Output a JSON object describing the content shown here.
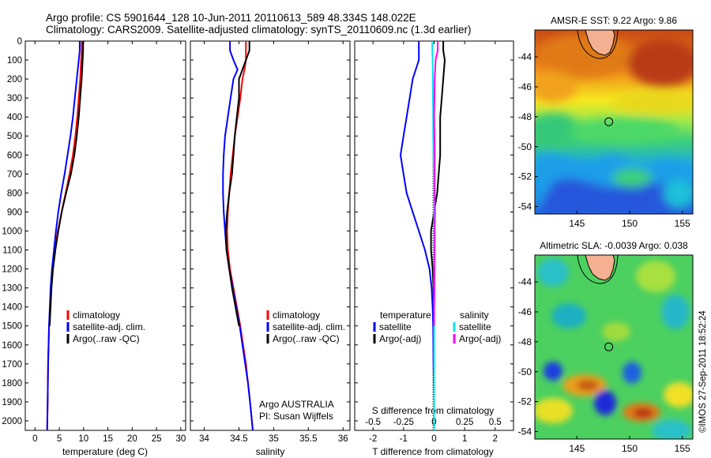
{
  "header": {
    "line1": "Argo profile: CS 5901644_128 10-Jun-2011 20110613_589 48.334S 148.022E",
    "line2": "Climatology: CARS2009. Satellite-adjusted climatology: synTS_20110609.nc (1.3d earlier)"
  },
  "colors": {
    "climatology": "#ff0000",
    "satellite": "#0000ff",
    "argo": "#000000",
    "satellite_salinity": "#00e5ee",
    "argo_salinity": "#ff00ff"
  },
  "depth_ticks": [
    "0",
    "100",
    "200",
    "300",
    "400",
    "500",
    "600",
    "700",
    "800",
    "900",
    "1000",
    "1100",
    "1200",
    "1300",
    "1400",
    "1500",
    "1600",
    "1700",
    "1800",
    "1900",
    "2000"
  ],
  "chart_data": [
    {
      "type": "line",
      "id": "temperature",
      "xlabel": "temperature (deg C)",
      "xlim": [
        -2,
        31
      ],
      "ylim": [
        0,
        2050
      ],
      "xticks": [
        "0",
        "5",
        "10",
        "15",
        "20",
        "25",
        "30"
      ],
      "legend": [
        "climatology",
        "satellite-adj. clim.",
        "Argo(..raw -QC)"
      ],
      "series": [
        {
          "name": "climatology",
          "color_key": "climatology",
          "depth": [
            0,
            50,
            100,
            200,
            300,
            400,
            500,
            600,
            700,
            800,
            900,
            1000,
            1100,
            1200,
            1300,
            1500,
            1700,
            1900,
            2050
          ],
          "values": [
            9.6,
            9.6,
            9.5,
            9.3,
            9.0,
            8.7,
            8.3,
            7.8,
            7.1,
            6.3,
            5.5,
            4.7,
            4.1,
            3.6,
            3.3,
            2.9,
            2.7,
            2.6,
            2.5
          ]
        },
        {
          "name": "satellite-adj. clim.",
          "color_key": "satellite",
          "depth": [
            0,
            50,
            100,
            200,
            300,
            400,
            500,
            600,
            700,
            800,
            900,
            1000,
            1100,
            1200,
            1300,
            1500,
            1700,
            1900,
            2050
          ],
          "values": [
            9.2,
            9.2,
            9.0,
            8.6,
            8.2,
            7.8,
            7.3,
            6.7,
            6.1,
            5.4,
            4.8,
            4.3,
            3.9,
            3.5,
            3.2,
            2.9,
            2.7,
            2.6,
            2.5
          ]
        },
        {
          "name": "Argo(..raw -QC)",
          "color_key": "argo",
          "depth": [
            0,
            50,
            100,
            200,
            300,
            400,
            500,
            600,
            700,
            800,
            900,
            1000,
            1100,
            1200,
            1300,
            1400,
            1500
          ],
          "values": [
            9.9,
            9.9,
            9.8,
            9.6,
            9.3,
            9.0,
            8.6,
            8.1,
            7.4,
            6.4,
            5.5,
            4.8,
            4.2,
            3.7,
            3.4,
            3.2,
            3.0
          ]
        }
      ]
    },
    {
      "type": "line",
      "id": "salinity",
      "xlabel": "salinity",
      "xlim": [
        33.8,
        36.1
      ],
      "ylim": [
        0,
        2050
      ],
      "xticks": [
        "34",
        "34.5",
        "35",
        "35.5",
        "36"
      ],
      "legend": [
        "climatology",
        "satellite-adj. clim.",
        "Argo(..raw -QC)"
      ],
      "annotation": [
        "Argo AUSTRALIA",
        "PI: Susan Wijffels"
      ],
      "series": [
        {
          "name": "climatology",
          "color_key": "climatology",
          "depth": [
            0,
            50,
            100,
            150,
            200,
            300,
            400,
            500,
            600,
            700,
            800,
            900,
            1000,
            1100,
            1200,
            1300,
            1400,
            1500,
            1600,
            1700,
            1800,
            1900,
            2050
          ],
          "values": [
            34.6,
            34.6,
            34.6,
            34.58,
            34.55,
            34.52,
            34.48,
            34.44,
            34.41,
            34.38,
            34.36,
            34.34,
            34.33,
            34.34,
            34.37,
            34.42,
            34.47,
            34.52,
            34.56,
            34.6,
            34.63,
            34.66,
            34.7
          ]
        },
        {
          "name": "satellite-adj. clim.",
          "color_key": "satellite",
          "depth": [
            0,
            50,
            100,
            150,
            200,
            300,
            400,
            500,
            600,
            700,
            800,
            900,
            1000,
            1100,
            1200,
            1300,
            1400,
            1500,
            1600,
            1700,
            1800,
            1900,
            2050
          ],
          "values": [
            34.37,
            34.37,
            34.42,
            34.48,
            34.42,
            34.38,
            34.34,
            34.3,
            34.28,
            34.27,
            34.27,
            34.28,
            34.3,
            34.32,
            34.36,
            34.41,
            34.46,
            34.51,
            34.55,
            34.59,
            34.63,
            34.66,
            34.7
          ]
        },
        {
          "name": "Argo(..raw -QC)",
          "color_key": "argo",
          "depth": [
            0,
            50,
            100,
            150,
            200,
            300,
            400,
            500,
            600,
            700,
            800,
            900,
            1000,
            1100,
            1200,
            1300,
            1400,
            1500
          ],
          "values": [
            34.65,
            34.65,
            34.6,
            34.55,
            34.5,
            34.5,
            34.47,
            34.44,
            34.42,
            34.4,
            34.36,
            34.33,
            34.31,
            34.32,
            34.36,
            34.4,
            34.45,
            34.5
          ]
        }
      ]
    },
    {
      "type": "line",
      "id": "difference",
      "xlabel": "T difference from climatology",
      "xlabel_top": "S difference from climatology",
      "xlim": [
        -2.6,
        2.6
      ],
      "ylim": [
        0,
        2050
      ],
      "xticks": [
        "-2",
        "-1",
        "0",
        "1",
        "2"
      ],
      "xticks_s": [
        "-0.5",
        "-0.25",
        "0",
        "0.25",
        "0.5"
      ],
      "legend_headers": [
        "temperature",
        "salinity"
      ],
      "legend_temperature": [
        "satellite",
        "Argo(-adj)"
      ],
      "legend_salinity": [
        "satellite",
        "Argo(-adj)"
      ],
      "series": [
        {
          "name": "satellite",
          "color_key": "satellite",
          "depth": [
            0,
            50,
            100,
            200,
            300,
            400,
            500,
            600,
            700,
            800,
            900,
            1000,
            1100,
            1200,
            1300,
            1400,
            1500,
            1700,
            1900,
            2050
          ],
          "values": [
            -0.5,
            -0.5,
            -0.5,
            -0.7,
            -0.8,
            -0.9,
            -1.0,
            -1.1,
            -1.0,
            -0.9,
            -0.7,
            -0.5,
            -0.3,
            -0.15,
            -0.08,
            -0.05,
            -0.03,
            -0.02,
            0.0,
            0.0
          ]
        },
        {
          "name": "Argo(-adj)",
          "color_key": "argo",
          "depth": [
            0,
            50,
            100,
            200,
            300,
            400,
            500,
            600,
            700,
            800,
            900,
            1000,
            1100,
            1200,
            1300,
            1400,
            1500
          ],
          "values": [
            0.3,
            0.3,
            0.35,
            0.3,
            0.25,
            0.2,
            0.2,
            0.2,
            0.15,
            0.1,
            0.0,
            -0.1,
            -0.1,
            -0.05,
            -0.02,
            0.0,
            0.0
          ]
        },
        {
          "name": "satellite",
          "color_key": "satellite_salinity",
          "depth": [
            0,
            50,
            100,
            200,
            300,
            400,
            500,
            600,
            700,
            800,
            900,
            1000,
            1100,
            1200,
            1300,
            1400,
            1500,
            1700,
            1900,
            2050
          ],
          "values": [
            -0.06,
            -0.06,
            -0.05,
            -0.04,
            -0.04,
            -0.03,
            -0.03,
            -0.02,
            -0.01,
            0.0,
            0.0,
            0.0,
            0.0,
            0.0,
            0.0,
            0.0,
            0.0,
            0.0,
            0.0,
            0.0
          ]
        },
        {
          "name": "Argo(-adj)",
          "color_key": "argo_salinity",
          "depth": [
            0,
            50,
            100,
            200,
            300,
            400,
            500,
            600,
            700,
            800,
            900,
            1000,
            1100,
            1200,
            1300,
            1400,
            1500
          ],
          "values": [
            0.12,
            0.12,
            0.05,
            0.02,
            0.01,
            0.0,
            0.01,
            0.02,
            0.02,
            0.02,
            0.03,
            0.02,
            0.02,
            0.01,
            0.01,
            0.0,
            0.0
          ]
        }
      ]
    },
    {
      "type": "heatmap",
      "id": "sst_map",
      "title": "AMSR-E SST: 9.22 Argo: 9.86",
      "xticks": [
        "145",
        "150",
        "155"
      ],
      "yticks": [
        "-44",
        "-46",
        "-48",
        "-50",
        "-52",
        "-54"
      ],
      "xlim": [
        141,
        156
      ],
      "ylim": [
        -54.5,
        -42.2
      ],
      "marker": {
        "lon": 148.022,
        "lat": -48.334
      }
    },
    {
      "type": "heatmap",
      "id": "sla_map",
      "title": "Altimetric SLA: -0.0039 Argo: 0.038",
      "xticks": [
        "145",
        "150",
        "155"
      ],
      "yticks": [
        "-44",
        "-46",
        "-48",
        "-50",
        "-52",
        "-54"
      ],
      "xlim": [
        141,
        156
      ],
      "ylim": [
        -54.5,
        -42.2
      ],
      "marker": {
        "lon": 148.022,
        "lat": -48.334
      }
    }
  ],
  "watermark": "©IMOS 27-Sep-2011 18:52:24"
}
